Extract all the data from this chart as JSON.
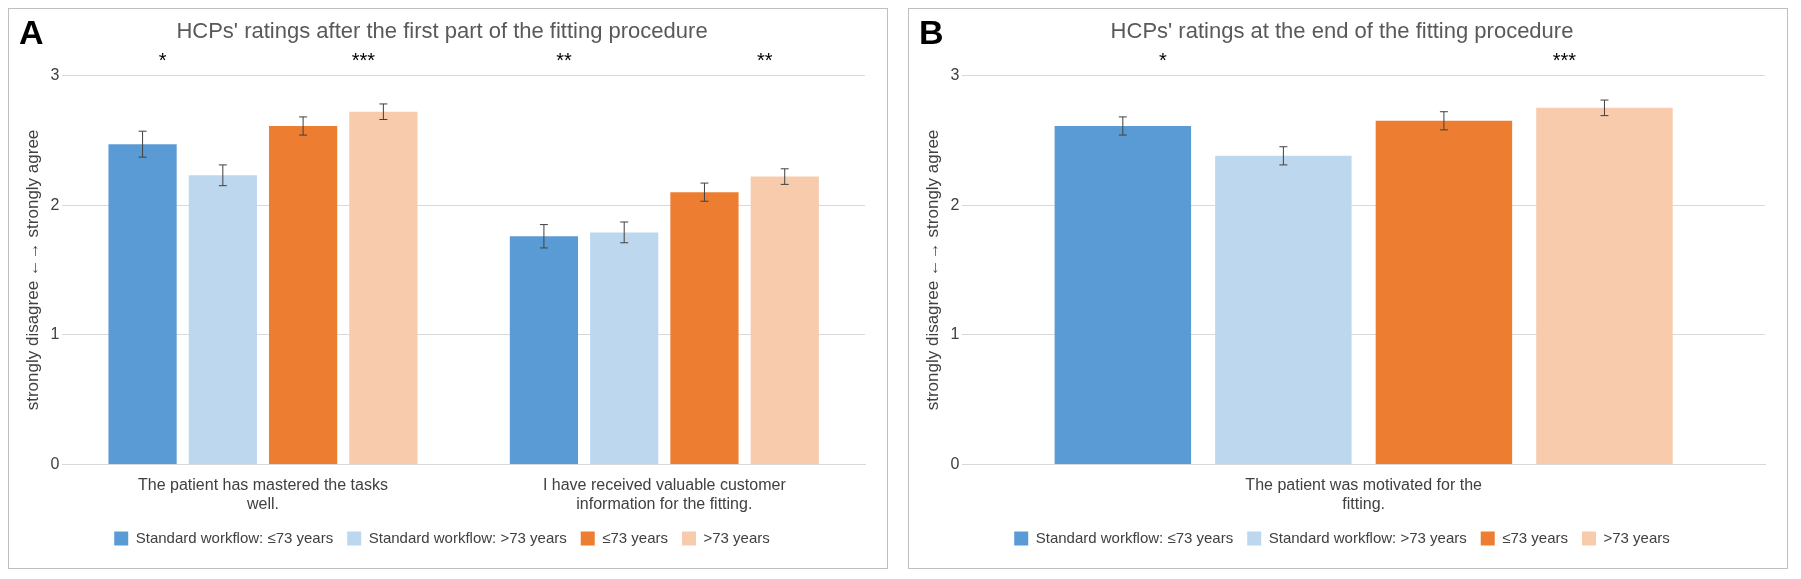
{
  "chart_data": [
    {
      "type": "bar",
      "title": "HCPs' ratings after the first part of the fitting procedure",
      "ylabel": "strongly disagree ←→ strongly agree",
      "categories": [
        "The patient has mastered the tasks well.",
        "I have received valuable customer information for the fitting."
      ],
      "series": [
        {
          "name": "Standard workflow: ≤73 years",
          "color": "#5b9bd5",
          "values": [
            2.47,
            1.76
          ],
          "errors": [
            0.1,
            0.09
          ]
        },
        {
          "name": "Standard workflow: >73 years",
          "color": "#bdd7ee",
          "values": [
            2.23,
            1.79
          ],
          "errors": [
            0.08,
            0.08
          ]
        },
        {
          "name": "≤73 years",
          "color": "#ed7d31",
          "values": [
            2.61,
            2.1
          ],
          "errors": [
            0.07,
            0.07
          ]
        },
        {
          "name": ">73 years",
          "color": "#f8cbad",
          "values": [
            2.72,
            2.22
          ],
          "errors": [
            0.06,
            0.06
          ]
        }
      ],
      "ylim": [
        0,
        3
      ],
      "yticks": [
        0,
        1,
        2,
        3
      ],
      "grid": "y",
      "legend": "bottom",
      "annotations": [
        "A",
        "*",
        "***",
        "**",
        "**"
      ]
    },
    {
      "type": "bar",
      "title": "HCPs' ratings at the end of the fitting procedure",
      "ylabel": "strongly disagree ←→ strongly agree",
      "categories": [
        "The patient was motivated for the fitting."
      ],
      "series": [
        {
          "name": "Standard workflow: ≤73 years",
          "color": "#5b9bd5",
          "values": [
            2.61
          ],
          "errors": [
            0.07
          ]
        },
        {
          "name": "Standard workflow: >73 years",
          "color": "#bdd7ee",
          "values": [
            2.38
          ],
          "errors": [
            0.07
          ]
        },
        {
          "name": "≤73 years",
          "color": "#ed7d31",
          "values": [
            2.65
          ],
          "errors": [
            0.07
          ]
        },
        {
          "name": ">73 years",
          "color": "#f8cbad",
          "values": [
            2.75
          ],
          "errors": [
            0.06
          ]
        }
      ],
      "ylim": [
        0,
        3
      ],
      "yticks": [
        0,
        1,
        2,
        3
      ],
      "grid": "y",
      "legend": "bottom",
      "annotations": [
        "B",
        "*",
        "***"
      ]
    }
  ]
}
